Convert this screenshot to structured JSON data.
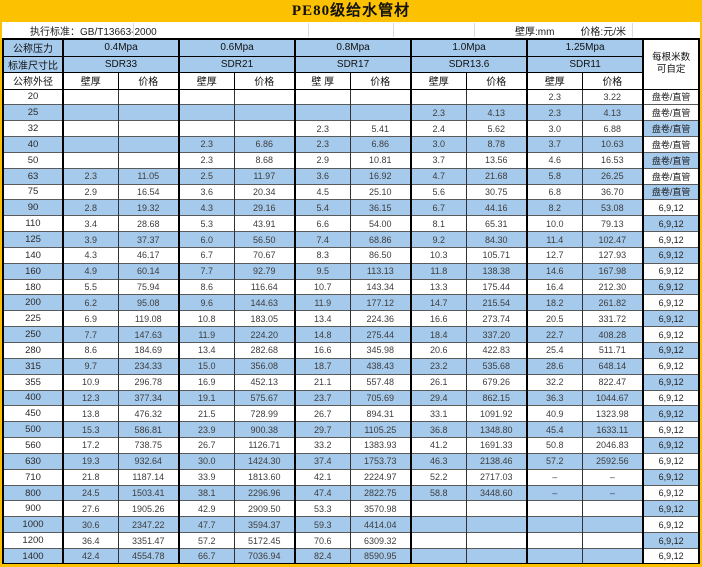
{
  "title": "PE80级给水管材",
  "meta": {
    "standard": "执行标准：GB/T13663-2000",
    "wall_unit": "壁厚:mm",
    "price_unit": "价格:元/米"
  },
  "header": {
    "pressure_label": "公称压力",
    "sdr_label": "标准尺寸比",
    "od_label": "公称外径",
    "price_label": "价格",
    "note_line1": "每根米数",
    "note_line2": "可自定",
    "groups": [
      {
        "pressure": "0.4Mpa",
        "sdr": "SDR33",
        "wall_label": "壁厚"
      },
      {
        "pressure": "0.6Mpa",
        "sdr": "SDR21",
        "wall_label": "壁厚"
      },
      {
        "pressure": "0.8Mpa",
        "sdr": "SDR17",
        "wall_label": "壁 厚"
      },
      {
        "pressure": "1.0Mpa",
        "sdr": "SDR13.6",
        "wall_label": "壁厚"
      },
      {
        "pressure": "1.25Mpa",
        "sdr": "SDR11",
        "wall_label": "壁厚"
      }
    ]
  },
  "notes_legend": {
    "coil": "盘卷/直管",
    "lengths": "6,9,12"
  },
  "colors": {
    "accent_yellow": "#fcc101",
    "band_blue": "#a6caec"
  },
  "rows": [
    {
      "od": "20",
      "cells": [
        "",
        "",
        "",
        "",
        "",
        "",
        "",
        "",
        "2.3",
        "3.22"
      ],
      "note": "盘卷/直管"
    },
    {
      "od": "25",
      "cells": [
        "",
        "",
        "",
        "",
        "",
        "",
        "2.3",
        "4.13",
        "2.3",
        "4.13"
      ],
      "note": "盘卷/直管"
    },
    {
      "od": "32",
      "cells": [
        "",
        "",
        "",
        "",
        "2.3",
        "5.41",
        "2.4",
        "5.62",
        "3.0",
        "6.88"
      ],
      "note": "盘卷/直管"
    },
    {
      "od": "40",
      "cells": [
        "",
        "",
        "2.3",
        "6.86",
        "2.3",
        "6.86",
        "3.0",
        "8.78",
        "3.7",
        "10.63"
      ],
      "note": "盘卷/直管"
    },
    {
      "od": "50",
      "cells": [
        "",
        "",
        "2.3",
        "8.68",
        "2.9",
        "10.81",
        "3.7",
        "13.56",
        "4.6",
        "16.53"
      ],
      "note": "盘卷/直管"
    },
    {
      "od": "63",
      "cells": [
        "2.3",
        "11.05",
        "2.5",
        "11.97",
        "3.6",
        "16.92",
        "4.7",
        "21.68",
        "5.8",
        "26.25"
      ],
      "note": "盘卷/直管"
    },
    {
      "od": "75",
      "cells": [
        "2.9",
        "16.54",
        "3.6",
        "20.34",
        "4.5",
        "25.10",
        "5.6",
        "30.75",
        "6.8",
        "36.70"
      ],
      "note": "盘卷/直管"
    },
    {
      "od": "90",
      "cells": [
        "2.8",
        "19.32",
        "4.3",
        "29.16",
        "5.4",
        "36.15",
        "6.7",
        "44.16",
        "8.2",
        "53.08"
      ],
      "note": "6,9,12"
    },
    {
      "od": "110",
      "cells": [
        "3.4",
        "28.68",
        "5.3",
        "43.91",
        "6.6",
        "54.00",
        "8.1",
        "65.31",
        "10.0",
        "79.13"
      ],
      "note": "6,9,12"
    },
    {
      "od": "125",
      "cells": [
        "3.9",
        "37.37",
        "6.0",
        "56.50",
        "7.4",
        "68.86",
        "9.2",
        "84.30",
        "11.4",
        "102.47"
      ],
      "note": "6,9,12"
    },
    {
      "od": "140",
      "cells": [
        "4.3",
        "46.17",
        "6.7",
        "70.67",
        "8.3",
        "86.50",
        "10.3",
        "105.71",
        "12.7",
        "127.93"
      ],
      "note": "6,9,12"
    },
    {
      "od": "160",
      "cells": [
        "4.9",
        "60.14",
        "7.7",
        "92.79",
        "9.5",
        "113.13",
        "11.8",
        "138.38",
        "14.6",
        "167.98"
      ],
      "note": "6,9,12"
    },
    {
      "od": "180",
      "cells": [
        "5.5",
        "75.94",
        "8.6",
        "116.64",
        "10.7",
        "143.34",
        "13.3",
        "175.44",
        "16.4",
        "212.30"
      ],
      "note": "6,9,12"
    },
    {
      "od": "200",
      "cells": [
        "6.2",
        "95.08",
        "9.6",
        "144.63",
        "11.9",
        "177.12",
        "14.7",
        "215.54",
        "18.2",
        "261.82"
      ],
      "note": "6,9,12"
    },
    {
      "od": "225",
      "cells": [
        "6.9",
        "119.08",
        "10.8",
        "183.05",
        "13.4",
        "224.36",
        "16.6",
        "273.74",
        "20.5",
        "331.72"
      ],
      "note": "6,9,12"
    },
    {
      "od": "250",
      "cells": [
        "7.7",
        "147.63",
        "11.9",
        "224.20",
        "14.8",
        "275.44",
        "18.4",
        "337.20",
        "22.7",
        "408.28"
      ],
      "note": "6,9,12"
    },
    {
      "od": "280",
      "cells": [
        "8.6",
        "184.69",
        "13.4",
        "282.68",
        "16.6",
        "345.98",
        "20.6",
        "422.83",
        "25.4",
        "511.71"
      ],
      "note": "6,9,12"
    },
    {
      "od": "315",
      "cells": [
        "9.7",
        "234.33",
        "15.0",
        "356.08",
        "18.7",
        "438.43",
        "23.2",
        "535.68",
        "28.6",
        "648.14"
      ],
      "note": "6,9,12"
    },
    {
      "od": "355",
      "cells": [
        "10.9",
        "296.78",
        "16.9",
        "452.13",
        "21.1",
        "557.48",
        "26.1",
        "679.26",
        "32.2",
        "822.47"
      ],
      "note": "6,9,12"
    },
    {
      "od": "400",
      "cells": [
        "12.3",
        "377.34",
        "19.1",
        "575.67",
        "23.7",
        "705.69",
        "29.4",
        "862.15",
        "36.3",
        "1044.67"
      ],
      "note": "6,9,12"
    },
    {
      "od": "450",
      "cells": [
        "13.8",
        "476.32",
        "21.5",
        "728.99",
        "26.7",
        "894.31",
        "33.1",
        "1091.92",
        "40.9",
        "1323.98"
      ],
      "note": "6,9,12"
    },
    {
      "od": "500",
      "cells": [
        "15.3",
        "586.81",
        "23.9",
        "900.38",
        "29.7",
        "1105.25",
        "36.8",
        "1348.80",
        "45.4",
        "1633.11"
      ],
      "note": "6,9,12"
    },
    {
      "od": "560",
      "cells": [
        "17.2",
        "738.75",
        "26.7",
        "1126.71",
        "33.2",
        "1383.93",
        "41.2",
        "1691.33",
        "50.8",
        "2046.83"
      ],
      "note": "6,9,12"
    },
    {
      "od": "630",
      "cells": [
        "19.3",
        "932.64",
        "30.0",
        "1424.30",
        "37.4",
        "1753.73",
        "46.3",
        "2138.46",
        "57.2",
        "2592.56"
      ],
      "note": "6,9,12"
    },
    {
      "od": "710",
      "cells": [
        "21.8",
        "1187.14",
        "33.9",
        "1813.60",
        "42.1",
        "2224.97",
        "52.2",
        "2717.03",
        "–",
        "–"
      ],
      "note": "6,9,12"
    },
    {
      "od": "800",
      "cells": [
        "24.5",
        "1503.41",
        "38.1",
        "2296.96",
        "47.4",
        "2822.75",
        "58.8",
        "3448.60",
        "–",
        "–"
      ],
      "note": "6,9,12"
    },
    {
      "od": "900",
      "cells": [
        "27.6",
        "1905.26",
        "42.9",
        "2909.50",
        "53.3",
        "3570.98",
        "",
        "",
        "",
        ""
      ],
      "note": "6,9,12"
    },
    {
      "od": "1000",
      "cells": [
        "30.6",
        "2347.22",
        "47.7",
        "3594.37",
        "59.3",
        "4414.04",
        "",
        "",
        "",
        ""
      ],
      "note": "6,9,12"
    },
    {
      "od": "1200",
      "cells": [
        "36.4",
        "3351.47",
        "57.2",
        "5172.45",
        "70.6",
        "6309.32",
        "",
        "",
        "",
        ""
      ],
      "note": "6,9,12"
    },
    {
      "od": "1400",
      "cells": [
        "42.4",
        "4554.78",
        "66.7",
        "7036.94",
        "82.4",
        "8590.95",
        "",
        "",
        "",
        ""
      ],
      "note": "6,9,12"
    }
  ]
}
